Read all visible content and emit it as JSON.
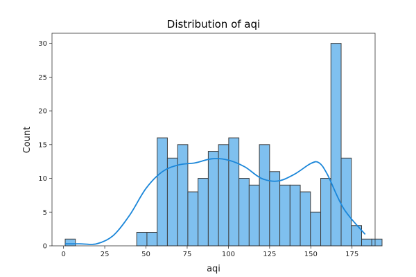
{
  "chart_data": {
    "type": "bar",
    "title": "Distribution of aqi",
    "xlabel": "aqi",
    "ylabel": "Count",
    "xlim": [
      -7,
      189
    ],
    "ylim": [
      0,
      31.5
    ],
    "x_ticks": [
      0,
      25,
      50,
      75,
      100,
      125,
      150,
      175
    ],
    "y_ticks": [
      0,
      5,
      10,
      15,
      20,
      25,
      30
    ],
    "grid": false,
    "legend": "none",
    "bin_width": 6.2,
    "bins_start": 1,
    "counts": [
      1,
      0,
      0,
      0,
      0,
      0,
      0,
      2,
      2,
      16,
      13,
      15,
      8,
      10,
      14,
      15,
      16,
      10,
      9,
      15,
      11,
      9,
      9,
      8,
      5,
      10,
      30,
      13,
      3,
      1,
      1
    ],
    "kde": {
      "x": [
        1,
        10,
        20,
        30,
        40,
        50,
        60,
        70,
        80,
        90,
        100,
        110,
        120,
        130,
        140,
        150,
        155,
        160,
        170,
        183
      ],
      "y": [
        0.3,
        0.3,
        0.3,
        1.5,
        4.5,
        8.5,
        11.0,
        12.0,
        12.3,
        12.9,
        12.7,
        11.7,
        10.0,
        9.6,
        10.6,
        12.2,
        12.3,
        10.6,
        5.5,
        1.7
      ]
    },
    "colors": {
      "bar_fill": "#7fc0ef",
      "bar_edge": "#3d3d3d",
      "kde_line": "#1a86d9"
    }
  }
}
